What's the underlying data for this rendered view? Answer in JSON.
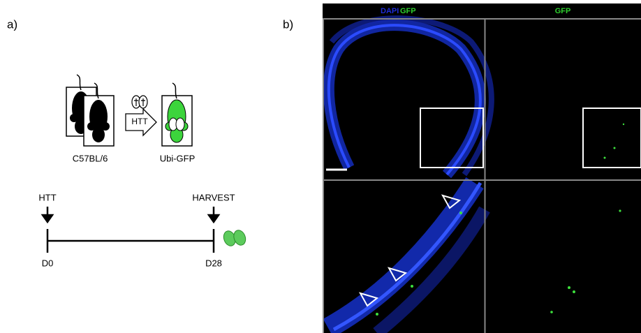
{
  "panel_a": {
    "label": "a)",
    "schematic": {
      "donor": "C57BL/6",
      "procedure": "HTT",
      "recipient": "Ubi-GFP"
    },
    "timeline": {
      "start_event": "HTT",
      "end_event": "HARVEST",
      "start_day": "D0",
      "end_day": "D28"
    }
  },
  "panel_b": {
    "label": "b)",
    "columns": [
      {
        "stain_1": "DAPI",
        "stain_2": "GFP"
      },
      {
        "stain_1": "GFP"
      }
    ]
  }
}
